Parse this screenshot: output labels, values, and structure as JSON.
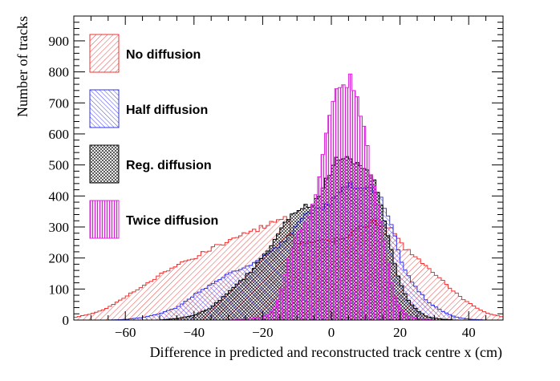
{
  "chart_data": {
    "type": "histogram",
    "xlabel": "Difference in predicted and reconstructed track centre x (cm)",
    "ylabel": "Number of tracks",
    "xlim": [
      -75,
      50
    ],
    "ylim": [
      0,
      980
    ],
    "xticks": [
      -60,
      -40,
      -20,
      0,
      20,
      40
    ],
    "xtick_labels": [
      "−60",
      "−40",
      "−20",
      "0",
      "20",
      "40"
    ],
    "yticks": [
      0,
      100,
      200,
      300,
      400,
      500,
      600,
      700,
      800,
      900
    ],
    "ytick_labels": [
      "0",
      "100",
      "200",
      "300",
      "400",
      "500",
      "600",
      "700",
      "800",
      "900"
    ],
    "bin_width": 1,
    "legend_position": "top-left",
    "series": [
      {
        "name": "No diffusion",
        "color": "#ee3333",
        "fill": "hatch-diagonal-right",
        "profile_x": [
          -75,
          -70,
          -66,
          -60,
          -55,
          -50,
          -45,
          -40,
          -35,
          -30,
          -25,
          -20,
          -16,
          -13,
          -10,
          -8,
          -6,
          -4,
          -2,
          0,
          2,
          4,
          6,
          8,
          10,
          12,
          14,
          16,
          18,
          20,
          22,
          25,
          28,
          31,
          34,
          37,
          40,
          43,
          46,
          50
        ],
        "profile_y": [
          8,
          20,
          35,
          75,
          110,
          145,
          175,
          200,
          230,
          255,
          280,
          300,
          320,
          330,
          235,
          250,
          255,
          250,
          255,
          258,
          262,
          270,
          280,
          295,
          310,
          315,
          310,
          300,
          295,
          250,
          225,
          200,
          170,
          140,
          110,
          80,
          55,
          35,
          20,
          10
        ]
      },
      {
        "name": "Half diffusion",
        "color": "#3333ee",
        "fill": "hatch-diagonal-left",
        "profile_x": [
          -75,
          -65,
          -60,
          -55,
          -50,
          -45,
          -40,
          -35,
          -30,
          -25,
          -22,
          -20,
          -18,
          -15,
          -12,
          -10,
          -8,
          -5,
          -2,
          0,
          2,
          5,
          8,
          10,
          12,
          14,
          16,
          18,
          20,
          22,
          25,
          28,
          32,
          36,
          40,
          45,
          50
        ],
        "profile_y": [
          0,
          0,
          2,
          8,
          20,
          40,
          80,
          115,
          150,
          170,
          190,
          205,
          215,
          240,
          280,
          310,
          330,
          350,
          360,
          380,
          410,
          430,
          440,
          430,
          420,
          400,
          355,
          290,
          200,
          150,
          100,
          60,
          30,
          10,
          3,
          0,
          0
        ]
      },
      {
        "name": "Reg. diffusion",
        "color": "#000000",
        "fill": "hatch-cross",
        "profile_x": [
          -75,
          -50,
          -45,
          -40,
          -35,
          -30,
          -25,
          -20,
          -18,
          -15,
          -12,
          -10,
          -8,
          -6,
          -4,
          -2,
          0,
          2,
          4,
          6,
          8,
          10,
          12,
          14,
          16,
          18,
          20,
          22,
          25,
          28,
          32,
          36,
          50
        ],
        "profile_y": [
          0,
          0,
          5,
          15,
          40,
          90,
          140,
          200,
          230,
          290,
          340,
          360,
          360,
          370,
          400,
          440,
          480,
          520,
          540,
          520,
          510,
          480,
          460,
          400,
          300,
          200,
          120,
          70,
          30,
          10,
          3,
          0,
          0
        ]
      },
      {
        "name": "Twice diffusion",
        "color": "#dd22dd",
        "fill": "hatch-vertical",
        "profile_x": [
          -75,
          -30,
          -25,
          -20,
          -18,
          -16,
          -14,
          -12,
          -10,
          -8,
          -6,
          -4,
          -2,
          0,
          1,
          2,
          3,
          4,
          5,
          6,
          7,
          8,
          9,
          10,
          11,
          12,
          13,
          14,
          15,
          16,
          17,
          18,
          20,
          22,
          25,
          28,
          30,
          50
        ],
        "profile_y": [
          0,
          0,
          3,
          10,
          20,
          50,
          120,
          220,
          270,
          310,
          350,
          420,
          560,
          680,
          710,
          740,
          750,
          760,
          770,
          780,
          730,
          700,
          650,
          590,
          520,
          440,
          400,
          350,
          300,
          220,
          150,
          90,
          40,
          15,
          5,
          2,
          0,
          0
        ]
      }
    ]
  }
}
